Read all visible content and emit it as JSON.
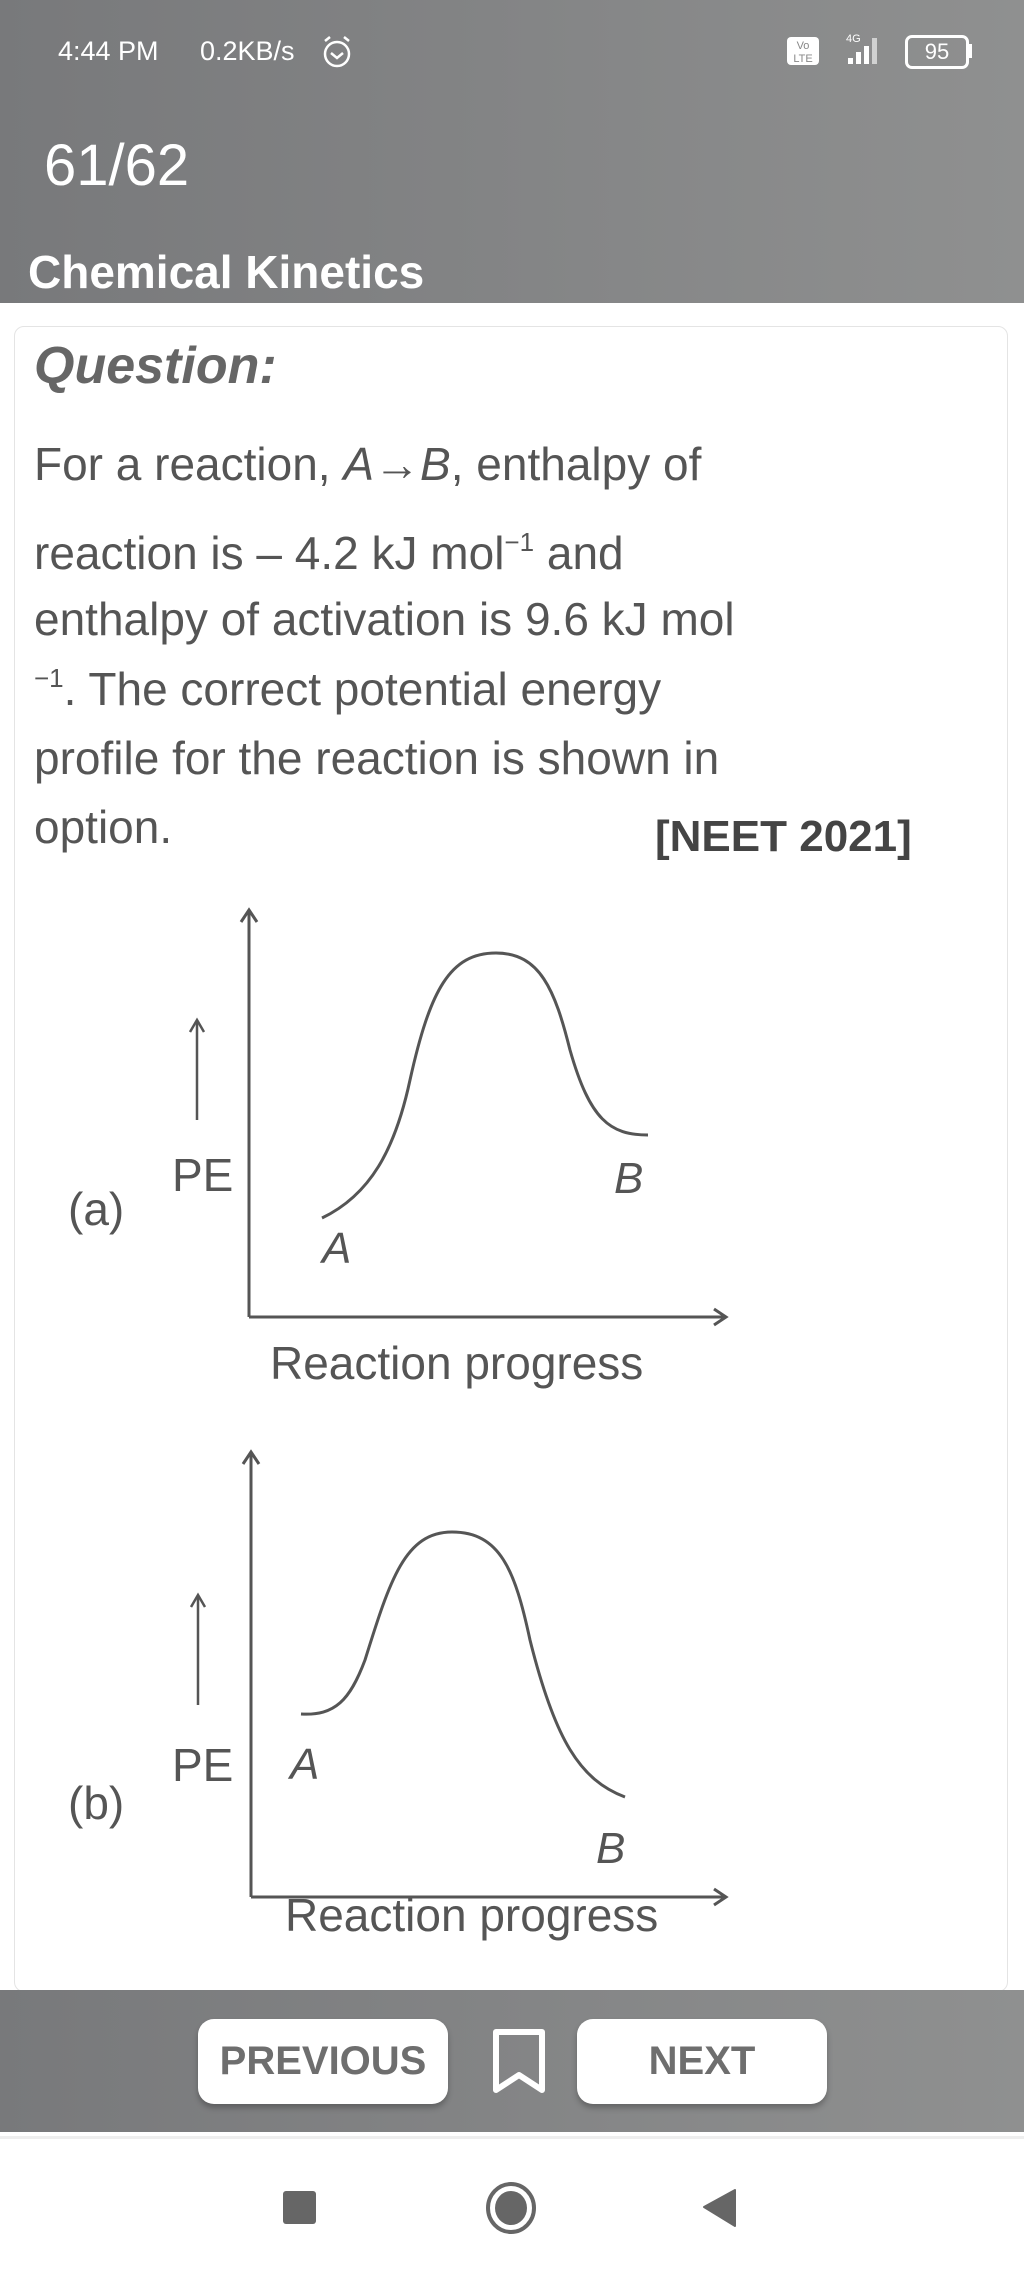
{
  "status_bar": {
    "time": "4:44 PM",
    "speed": "0.2KB/s",
    "network": "4G",
    "volte": "Vo LTE",
    "battery": "95"
  },
  "header": {
    "counter": "61/62",
    "topic": "Chemical Kinetics"
  },
  "question": {
    "label": "Question:",
    "lines": [
      [
        "For a reaction, ",
        "A",
        "→",
        "B",
        ", enthalpy of"
      ],
      [
        "reaction is – 4.2 kJ mol",
        "−1",
        " and"
      ],
      [
        "enthalpy of activation is 9.6 kJ mol"
      ],
      [
        "−1",
        ". The correct potential energy"
      ],
      [
        "profile for the reaction is shown in"
      ],
      [
        "option."
      ]
    ],
    "source": "[NEET 2021]"
  },
  "options": [
    {
      "label": "(a)",
      "y_label": "PE",
      "x_label": "Reaction progress",
      "reactant": "A",
      "product": "B"
    },
    {
      "label": "(b)",
      "y_label": "PE",
      "x_label": "Reaction progress",
      "reactant": "A",
      "product": "B"
    }
  ],
  "footer": {
    "previous": "PREVIOUS",
    "next": "NEXT",
    "bookmark_icon": "bookmark-outline-icon"
  },
  "nav": {
    "recents_icon": "square-icon",
    "home_icon": "circle-icon",
    "back_icon": "triangle-back-icon"
  },
  "colors": {
    "header": "#838485",
    "text": "#555555",
    "button_text": "#6e6e6e"
  }
}
